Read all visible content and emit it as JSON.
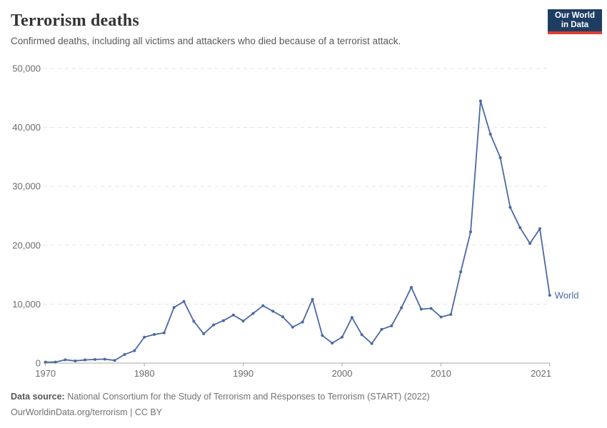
{
  "header": {
    "title": "Terrorism deaths",
    "subtitle": "Confirmed deaths, including all victims and attackers who died because of a terrorist attack.",
    "logo": {
      "line1": "Our World",
      "line2": "in Data",
      "bg_color": "#1d3d63",
      "accent_color": "#dc3f34"
    }
  },
  "chart_data": {
    "type": "line",
    "title": "Terrorism deaths",
    "xlabel": "",
    "ylabel": "",
    "x": [
      1970,
      1971,
      1972,
      1973,
      1974,
      1975,
      1976,
      1977,
      1978,
      1979,
      1980,
      1981,
      1982,
      1983,
      1984,
      1985,
      1986,
      1987,
      1988,
      1989,
      1990,
      1991,
      1992,
      1993,
      1994,
      1995,
      1996,
      1997,
      1998,
      1999,
      2000,
      2001,
      2002,
      2003,
      2004,
      2005,
      2006,
      2007,
      2008,
      2009,
      2010,
      2011,
      2012,
      2013,
      2014,
      2015,
      2016,
      2017,
      2018,
      2019,
      2020,
      2021
    ],
    "series": [
      {
        "name": "World",
        "color": "#4a69a4",
        "values": [
          171,
          173,
          566,
          370,
          539,
          617,
          672,
          456,
          1459,
          2100,
          4400,
          4851,
          5135,
          9444,
          10450,
          7094,
          4976,
          6482,
          7208,
          8152,
          7148,
          8429,
          9742,
          8800,
          7857,
          6103,
          6966,
          10817,
          4688,
          3389,
          4405,
          7729,
          4805,
          3317,
          5716,
          6331,
          9380,
          12855,
          9160,
          9272,
          7827,
          8246,
          15497,
          22273,
          44490,
          38853,
          34871,
          26445,
          22980,
          20309,
          22800,
          11500
        ]
      }
    ],
    "xlim": [
      1970,
      2021
    ],
    "ylim": [
      0,
      50000
    ],
    "x_tick_values": [
      1970,
      1980,
      1990,
      2000,
      2010,
      2021
    ],
    "x_tick_labels": [
      "1970",
      "1980",
      "1990",
      "2000",
      "2010",
      "2021"
    ],
    "y_tick_values": [
      0,
      10000,
      20000,
      30000,
      40000,
      50000
    ],
    "y_tick_labels": [
      "0",
      "10,000",
      "20,000",
      "30,000",
      "40,000",
      "50,000"
    ],
    "grid": "horizontal-dashed",
    "legend_position": "end-of-line",
    "end_label": "World",
    "colors": {
      "line": "#4a69a4",
      "grid": "#e3e3e3",
      "axis": "#a8a8a8",
      "tick_text": "#6b6b6b"
    }
  },
  "footer": {
    "source_label": "Data source:",
    "source_text": "National Consortium for the Study of Terrorism and Responses to Terrorism (START) (2022)",
    "link_line": "OurWorldinData.org/terrorism | CC BY"
  }
}
